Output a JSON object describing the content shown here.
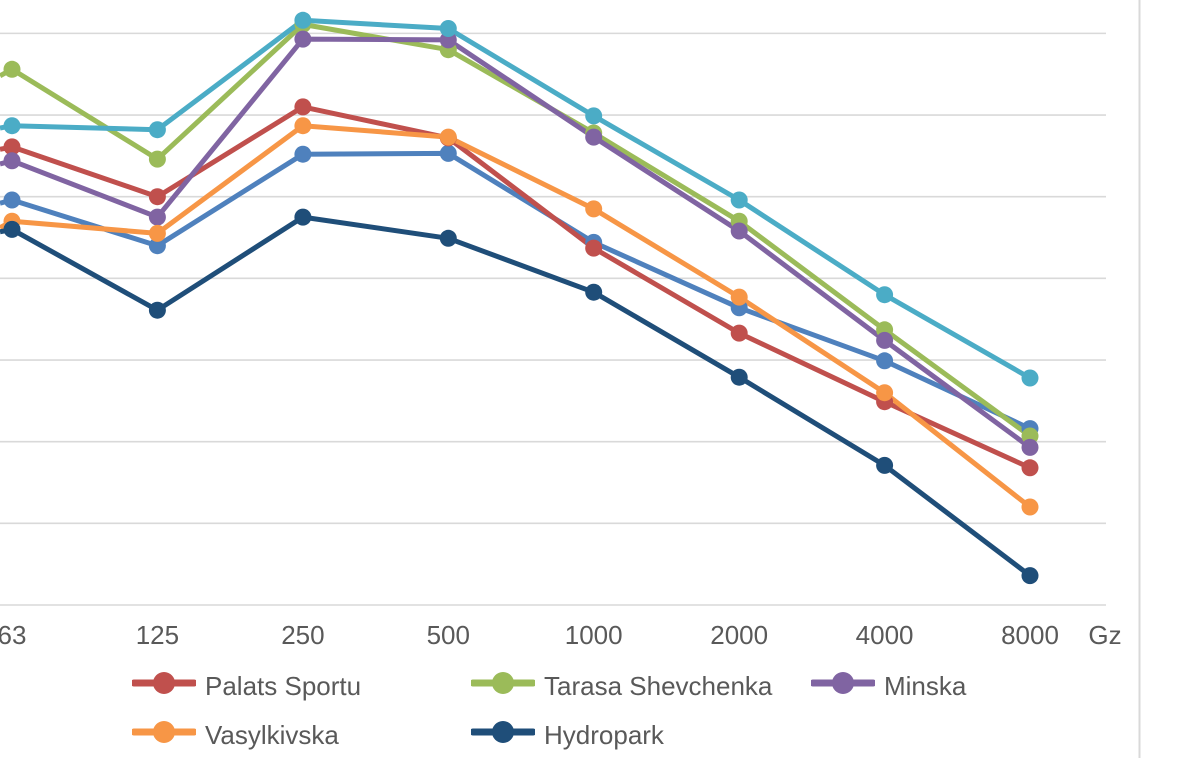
{
  "chart_data": {
    "type": "line",
    "title": "",
    "x_axis": {
      "categories": [
        "63",
        "125",
        "250",
        "500",
        "1000",
        "2000",
        "4000",
        "8000"
      ],
      "unit_label": "Gz"
    },
    "y_axis": {
      "tick_labels_visible": false,
      "min": 0,
      "max_visible": 7.4,
      "gridline_values": [
        0,
        1,
        2,
        3,
        4,
        5,
        6,
        7
      ],
      "grid": "on"
    },
    "series": [
      {
        "label": "",
        "semantic": "unnamed-blue-series",
        "color": "#4F81BD",
        "edge_value": 4.92,
        "values": [
          4.96,
          4.4,
          5.52,
          5.53,
          4.44,
          3.64,
          2.99,
          2.16
        ]
      },
      {
        "label": "Palats Sportu",
        "semantic": "palats-sportu",
        "color": "#C0504D",
        "edge_value": 5.58,
        "values": [
          5.61,
          5.0,
          6.1,
          5.72,
          4.37,
          3.33,
          2.49,
          1.68
        ]
      },
      {
        "label": "Tarasa Shevchenka",
        "semantic": "tarasa-shevchenka",
        "color": "#9BBB59",
        "edge_value": 6.48,
        "values": [
          6.56,
          5.46,
          7.11,
          6.8,
          5.78,
          4.7,
          3.37,
          2.07
        ]
      },
      {
        "label": "Minska",
        "semantic": "minska",
        "color": "#8064A2",
        "edge_value": 5.4,
        "values": [
          5.44,
          4.75,
          6.93,
          6.92,
          5.73,
          4.58,
          3.24,
          1.93
        ]
      },
      {
        "label": "",
        "semantic": "unnamed-teal-series",
        "color": "#4BACC6",
        "edge_value": 5.84,
        "values": [
          5.87,
          5.82,
          7.16,
          7.06,
          5.99,
          4.96,
          3.8,
          2.78
        ]
      },
      {
        "label": "Vasylkivska",
        "semantic": "vasylkivska",
        "color": "#F79646",
        "edge_value": 4.62,
        "values": [
          4.7,
          4.55,
          5.87,
          5.73,
          4.85,
          3.77,
          2.6,
          1.2
        ]
      },
      {
        "label": "Hydropark",
        "semantic": "hydropark",
        "color": "#1F4E79",
        "edge_value": 4.57,
        "values": [
          4.6,
          3.61,
          4.75,
          4.49,
          3.83,
          2.79,
          1.71,
          0.36
        ]
      }
    ],
    "legend": {
      "position": "bottom",
      "rows": [
        [
          "Palats Sportu",
          "Tarasa Shevchenka",
          "Minska"
        ],
        [
          "Vasylkivska",
          "Hydropark"
        ]
      ]
    }
  },
  "colors": {
    "background": "#FFFFFF",
    "gridline": "#D9D9D9",
    "axis_line": "#D9D9D9",
    "pane_border": "#D9D9D9",
    "axis_text": "#595959",
    "legend_text": "#595959"
  }
}
